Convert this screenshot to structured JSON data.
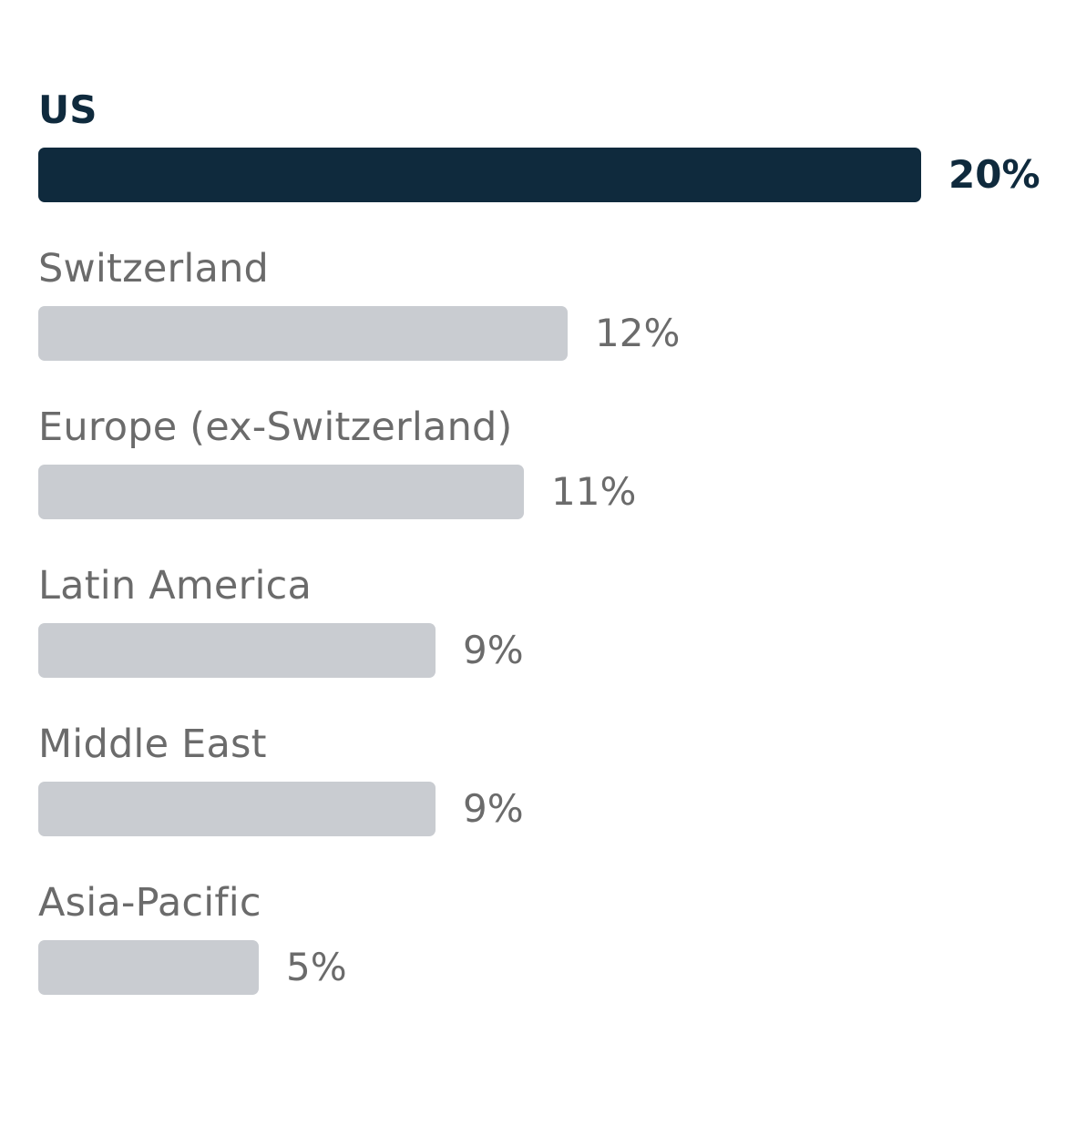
{
  "chart_data": {
    "type": "bar",
    "orientation": "horizontal",
    "categories": [
      "US",
      "Switzerland",
      "Europe (ex-Switzerland)",
      "Latin America",
      "Middle East",
      "Asia-Pacific"
    ],
    "values": [
      20,
      12,
      11,
      9,
      9,
      5
    ],
    "value_labels": [
      "20%",
      "12%",
      "11%",
      "9%",
      "9%",
      "5%"
    ],
    "unit": "%",
    "highlighted_category": "US",
    "xlim": [
      0,
      20
    ],
    "grid": false,
    "legend": "none"
  },
  "colors": {
    "highlight_bar": "#0f2a3d",
    "default_bar": "#c9ccd1",
    "highlight_text": "#0f2a3d",
    "default_text": "#6b6b6b"
  }
}
